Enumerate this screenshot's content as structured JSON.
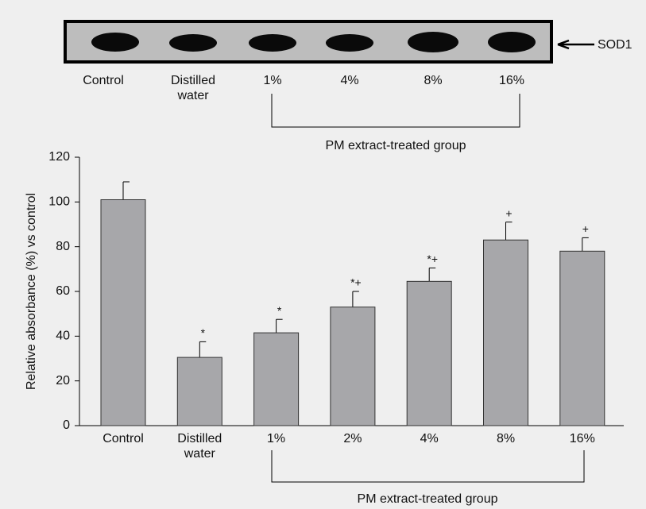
{
  "blot": {
    "lanes": [
      "Control",
      "Distilled water",
      "1%",
      "4%",
      "8%",
      "16%"
    ],
    "label": "SOD1",
    "group_label": "PM extract-treated group"
  },
  "chart_data": {
    "type": "bar",
    "y_label": "Relative absorbance (%) vs control",
    "categories": [
      "Control",
      "Distilled water",
      "1%",
      "2%",
      "4%",
      "8%",
      "16%"
    ],
    "values": [
      101,
      30.5,
      41.5,
      53,
      64.5,
      83,
      78
    ],
    "errors": [
      8,
      7,
      6,
      7,
      6,
      8,
      6
    ],
    "markers": [
      null,
      "*",
      "*",
      "*+",
      "*+",
      "+",
      "+"
    ],
    "group_label": "PM extract-treated group",
    "color": "#a7a7aa",
    "ylim": [
      0,
      120
    ],
    "yticks": [
      0,
      20,
      40,
      60,
      80,
      100,
      120
    ]
  }
}
